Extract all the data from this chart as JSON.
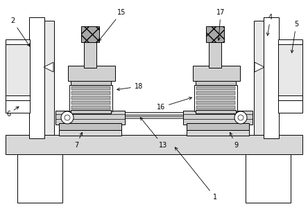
{
  "bg_color": "#ffffff",
  "lc": "#000000",
  "gray1": "#c8c8c8",
  "gray2": "#e0e0e0",
  "gray3": "#d0d0d0",
  "gray4": "#b8b8b8"
}
